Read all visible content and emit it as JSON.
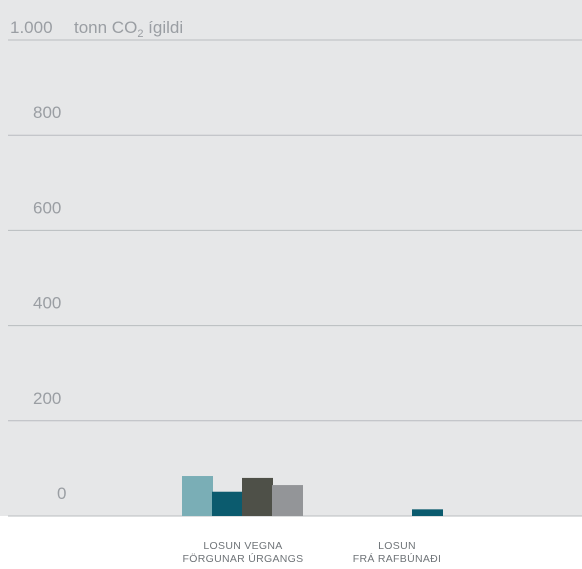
{
  "chart_data": {
    "type": "bar",
    "unit_label": {
      "prefix": "tonn CO",
      "subscript": "2",
      "suffix": " ígildi"
    },
    "ylim": [
      0,
      1000
    ],
    "y_ticks": [
      {
        "value": 0,
        "label": "0"
      },
      {
        "value": 200,
        "label": "200"
      },
      {
        "value": 400,
        "label": "400"
      },
      {
        "value": 600,
        "label": "600"
      },
      {
        "value": 800,
        "label": "800"
      },
      {
        "value": 1000,
        "label": "1.000"
      }
    ],
    "categories": [
      {
        "lines": [
          "LOSUN VEGNA",
          "FÖRGUNAR ÚRGANGS"
        ]
      },
      {
        "lines": [
          "LOSUN",
          "FRÁ RAFBÚNAÐI"
        ]
      }
    ],
    "series": [
      {
        "color": "#7aaeb6",
        "values": [
          84,
          0
        ]
      },
      {
        "color": "#0b5b6e",
        "values": [
          51,
          14
        ]
      },
      {
        "color": "#4e5048",
        "values": [
          80,
          0
        ]
      },
      {
        "color": "#939598",
        "values": [
          65,
          0
        ]
      }
    ],
    "grid": true,
    "colors": {
      "plot_background": "#e6e7e8",
      "gridline": "#b9bcbf"
    }
  }
}
